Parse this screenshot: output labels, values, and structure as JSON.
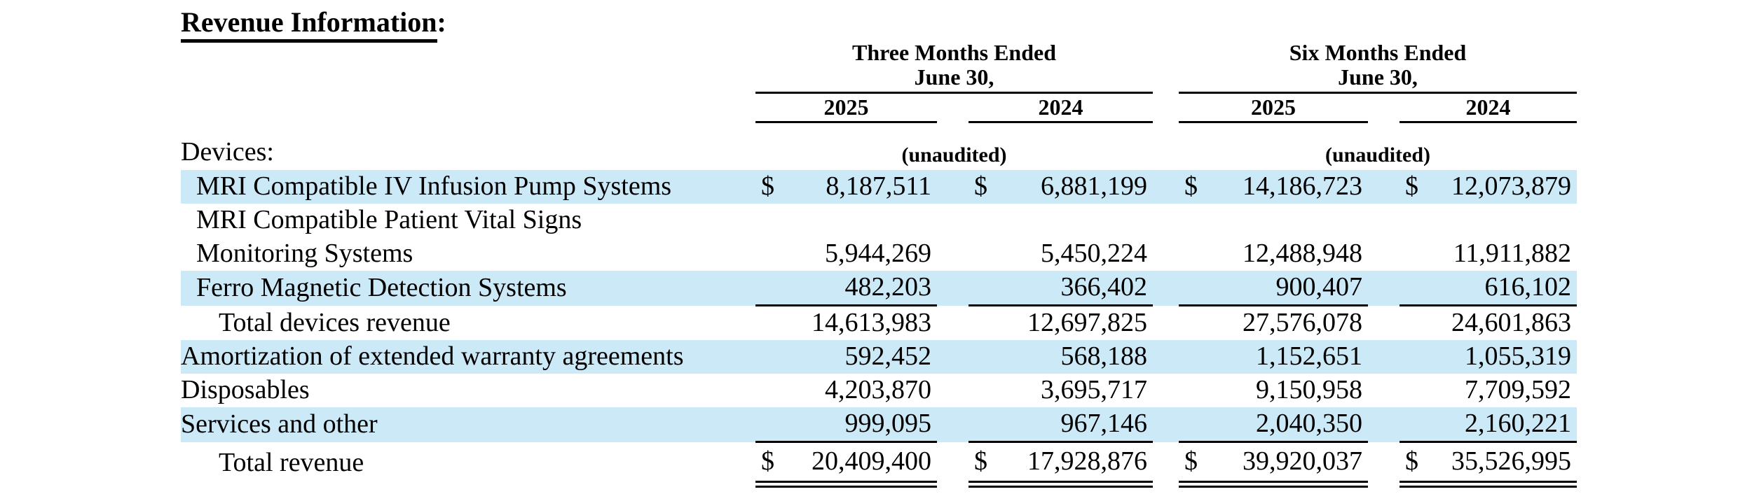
{
  "title": {
    "text": "Revenue Information",
    "suffix": ":"
  },
  "table": {
    "highlight_color": "#cce9f8",
    "currency_symbol": "$",
    "section_label": "Devices:",
    "col_groups": [
      {
        "title_line1": "Three Months Ended",
        "title_line2": "June 30,",
        "years": [
          "2025",
          "2024"
        ],
        "unaudited": "(unaudited)"
      },
      {
        "title_line1": "Six Months Ended",
        "title_line2": "June 30,",
        "years": [
          "2025",
          "2024"
        ],
        "unaudited": "(unaudited)"
      }
    ],
    "rows": [
      {
        "label": "MRI Compatible IV Infusion Pump Systems",
        "indent": 1,
        "highlight": true,
        "show_dollar": true,
        "underline": "none",
        "values": [
          "8,187,511",
          "6,881,199",
          "14,186,723",
          "12,073,879"
        ]
      },
      {
        "label": "MRI Compatible Patient Vital Signs",
        "indent": 1,
        "highlight": false,
        "show_dollar": false,
        "underline": "none",
        "values": null
      },
      {
        "label": "Monitoring Systems",
        "indent": 1,
        "highlight": false,
        "show_dollar": false,
        "underline": "none",
        "values": [
          "5,944,269",
          "5,450,224",
          "12,488,948",
          "11,911,882"
        ]
      },
      {
        "label": "Ferro Magnetic Detection Systems",
        "indent": 1,
        "highlight": true,
        "show_dollar": false,
        "underline": "single",
        "values": [
          "482,203",
          "366,402",
          "900,407",
          "616,102"
        ]
      },
      {
        "label": "Total devices revenue",
        "indent": 2,
        "highlight": false,
        "show_dollar": false,
        "underline": "none",
        "values": [
          "14,613,983",
          "12,697,825",
          "27,576,078",
          "24,601,863"
        ]
      },
      {
        "label": "Amortization of extended warranty agreements",
        "indent": 0,
        "highlight": true,
        "show_dollar": false,
        "underline": "none",
        "values": [
          "592,452",
          "568,188",
          "1,152,651",
          "1,055,319"
        ]
      },
      {
        "label": "Disposables",
        "indent": 0,
        "highlight": false,
        "show_dollar": false,
        "underline": "none",
        "values": [
          "4,203,870",
          "3,695,717",
          "9,150,958",
          "7,709,592"
        ]
      },
      {
        "label": "Services and other",
        "indent": 0,
        "highlight": true,
        "show_dollar": false,
        "underline": "single",
        "values": [
          "999,095",
          "967,146",
          "2,040,350",
          "2,160,221"
        ]
      },
      {
        "label": "Total revenue",
        "indent": 2,
        "highlight": false,
        "show_dollar": true,
        "underline": "double",
        "values": [
          "20,409,400",
          "17,928,876",
          "39,920,037",
          "35,526,995"
        ]
      }
    ]
  }
}
